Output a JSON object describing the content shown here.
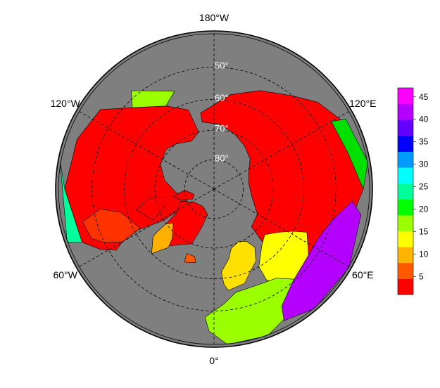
{
  "map": {
    "projection": "north-polar-stereographic",
    "ocean_color": "#7f7f7f",
    "background_color": "#ffffff",
    "longitude_labels": [
      {
        "lon": 180,
        "text": "180°W"
      },
      {
        "lon": -120,
        "text": "120°W"
      },
      {
        "lon": 120,
        "text": "120°E"
      },
      {
        "lon": -60,
        "text": "60°W"
      },
      {
        "lon": 60,
        "text": "60°E"
      },
      {
        "lon": 0,
        "text": "0°"
      }
    ],
    "latitude_circles": [
      {
        "lat": 50,
        "text": "50°"
      },
      {
        "lat": 60,
        "text": "60°"
      },
      {
        "lat": 70,
        "text": "70°"
      },
      {
        "lat": 80,
        "text": "80°"
      }
    ],
    "meridians": [
      0,
      60,
      120,
      180,
      -120,
      -60
    ]
  },
  "colorbar": {
    "min": 1,
    "max": 47,
    "ticks": [
      5,
      10,
      15,
      20,
      25,
      30,
      35,
      40,
      45
    ],
    "colors": [
      "#ff0000",
      "#ff5a00",
      "#ffb400",
      "#ffff00",
      "#9bff00",
      "#00ff00",
      "#00ff9b",
      "#00ffff",
      "#009bff",
      "#0000ff",
      "#6400ff",
      "#b400ff",
      "#ff00ff"
    ]
  }
}
